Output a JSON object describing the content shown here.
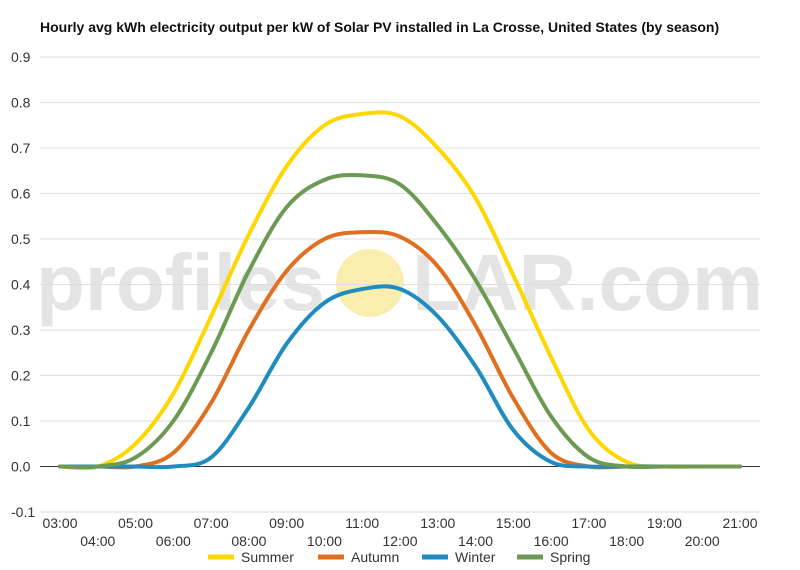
{
  "watermark": {
    "text_left": "profiles",
    "text_right": "LAR.com",
    "sun_color": "#f6e27a"
  },
  "chart_data": {
    "type": "line",
    "title": "Hourly avg kWh electricity output per kW of Solar PV installed in La Crosse, United States (by season)",
    "xlabel": "",
    "ylabel": "",
    "ylim": [
      -0.1,
      0.9
    ],
    "yticks": [
      "-0.1",
      "0.0",
      "0.1",
      "0.2",
      "0.3",
      "0.4",
      "0.5",
      "0.6",
      "0.7",
      "0.8",
      "0.9"
    ],
    "x": [
      "03:00",
      "04:00",
      "05:00",
      "06:00",
      "07:00",
      "08:00",
      "09:00",
      "10:00",
      "11:00",
      "12:00",
      "13:00",
      "14:00",
      "15:00",
      "16:00",
      "17:00",
      "18:00",
      "19:00",
      "20:00",
      "21:00"
    ],
    "grid": true,
    "legend": "bottom",
    "series": [
      {
        "name": "Summer",
        "color": "#ffd700",
        "values": [
          0.0,
          0.0,
          0.05,
          0.16,
          0.33,
          0.51,
          0.66,
          0.75,
          0.775,
          0.77,
          0.7,
          0.59,
          0.42,
          0.24,
          0.08,
          0.01,
          0.0,
          0.0,
          0.0
        ]
      },
      {
        "name": "Autumn",
        "color": "#e07020",
        "values": [
          0.0,
          0.0,
          0.0,
          0.03,
          0.14,
          0.3,
          0.43,
          0.5,
          0.515,
          0.505,
          0.44,
          0.31,
          0.15,
          0.03,
          0.0,
          0.0,
          0.0,
          0.0,
          0.0
        ]
      },
      {
        "name": "Winter",
        "color": "#1f8bbf",
        "values": [
          0.0,
          0.0,
          0.0,
          0.0,
          0.02,
          0.13,
          0.27,
          0.36,
          0.39,
          0.39,
          0.33,
          0.22,
          0.08,
          0.01,
          0.0,
          0.0,
          0.0,
          0.0,
          0.0
        ]
      },
      {
        "name": "Spring",
        "color": "#6d9a52",
        "values": [
          0.0,
          0.0,
          0.02,
          0.1,
          0.25,
          0.43,
          0.57,
          0.63,
          0.64,
          0.62,
          0.53,
          0.41,
          0.26,
          0.11,
          0.02,
          0.0,
          0.0,
          0.0,
          0.0
        ]
      }
    ]
  }
}
